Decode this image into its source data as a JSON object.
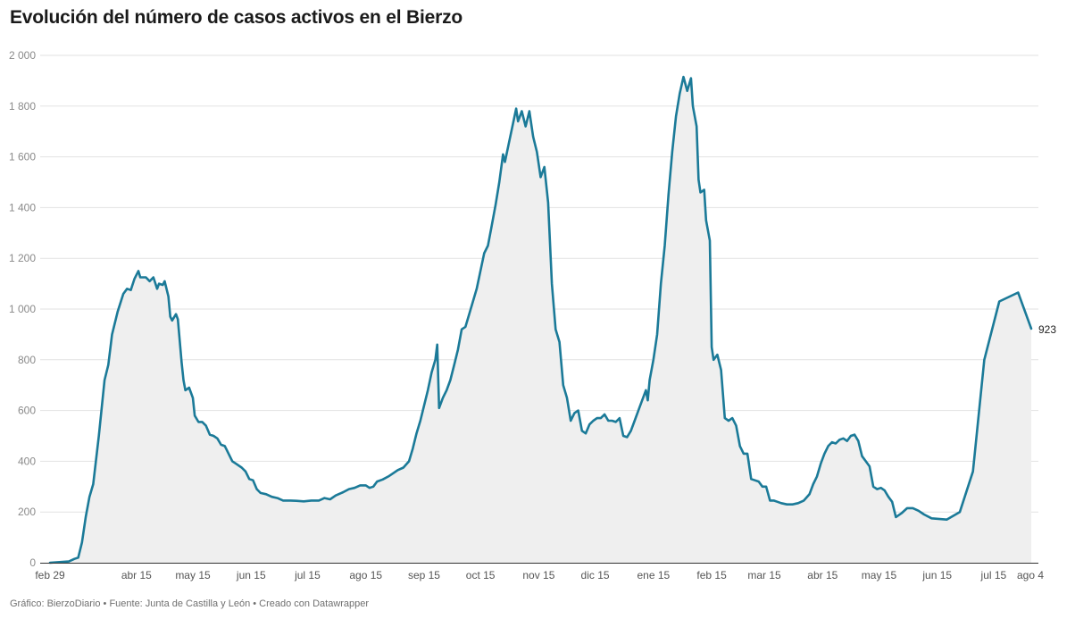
{
  "title": "Evolución del número de casos activos en el Bierzo",
  "footer": "Gráfico: BierzoDiario • Fuente: Junta de Castilla y León • Creado con Datawrapper",
  "colors": {
    "line": "#1b7a98",
    "area": "#efefef",
    "grid": "#e2e2e2",
    "axis": "#333333"
  },
  "chart_data": {
    "type": "area",
    "title": "Evolución del número de casos activos en el Bierzo",
    "xlabel": "",
    "ylabel": "",
    "ylim": [
      0,
      2000
    ],
    "yticks": [
      0,
      200,
      400,
      600,
      800,
      1000,
      1200,
      1400,
      1600,
      1800,
      2000
    ],
    "ytick_labels": [
      "0",
      "200",
      "400",
      "600",
      "800",
      "1 000",
      "1 200",
      "1 400",
      "1 600",
      "1 800",
      "2 000"
    ],
    "xlim": [
      "2020-02-29",
      "2021-08-04"
    ],
    "xticks": [
      {
        "date": "2020-02-29",
        "label": "feb 29"
      },
      {
        "date": "2020-04-15",
        "label": "abr 15"
      },
      {
        "date": "2020-05-15",
        "label": "may 15"
      },
      {
        "date": "2020-06-15",
        "label": "jun 15"
      },
      {
        "date": "2020-07-15",
        "label": "jul 15"
      },
      {
        "date": "2020-08-15",
        "label": "ago 15"
      },
      {
        "date": "2020-09-15",
        "label": "sep 15"
      },
      {
        "date": "2020-10-15",
        "label": "oct 15"
      },
      {
        "date": "2020-11-15",
        "label": "nov 15"
      },
      {
        "date": "2020-12-15",
        "label": "dic 15"
      },
      {
        "date": "2021-01-15",
        "label": "ene 15"
      },
      {
        "date": "2021-02-15",
        "label": "feb 15"
      },
      {
        "date": "2021-03-15",
        "label": "mar 15"
      },
      {
        "date": "2021-04-15",
        "label": "abr 15"
      },
      {
        "date": "2021-05-15",
        "label": "may 15"
      },
      {
        "date": "2021-06-15",
        "label": "jun 15"
      },
      {
        "date": "2021-07-15",
        "label": "jul 15"
      },
      {
        "date": "2021-08-04",
        "label": "ago 4"
      }
    ],
    "grid": true,
    "end_label": "923",
    "series": [
      {
        "points": [
          [
            "2020-02-29",
            0
          ],
          [
            "2020-03-10",
            5
          ],
          [
            "2020-03-13",
            15
          ],
          [
            "2020-03-15",
            20
          ],
          [
            "2020-03-17",
            80
          ],
          [
            "2020-03-19",
            180
          ],
          [
            "2020-03-21",
            260
          ],
          [
            "2020-03-23",
            310
          ],
          [
            "2020-03-26",
            500
          ],
          [
            "2020-03-29",
            720
          ],
          [
            "2020-03-31",
            780
          ],
          [
            "2020-04-02",
            900
          ],
          [
            "2020-04-05",
            990
          ],
          [
            "2020-04-08",
            1060
          ],
          [
            "2020-04-10",
            1080
          ],
          [
            "2020-04-12",
            1075
          ],
          [
            "2020-04-14",
            1120
          ],
          [
            "2020-04-16",
            1150
          ],
          [
            "2020-04-17",
            1125
          ],
          [
            "2020-04-20",
            1125
          ],
          [
            "2020-04-22",
            1110
          ],
          [
            "2020-04-24",
            1125
          ],
          [
            "2020-04-26",
            1080
          ],
          [
            "2020-04-27",
            1100
          ],
          [
            "2020-04-29",
            1095
          ],
          [
            "2020-04-30",
            1110
          ],
          [
            "2020-05-02",
            1050
          ],
          [
            "2020-05-03",
            970
          ],
          [
            "2020-05-04",
            955
          ],
          [
            "2020-05-06",
            980
          ],
          [
            "2020-05-07",
            960
          ],
          [
            "2020-05-09",
            790
          ],
          [
            "2020-05-10",
            720
          ],
          [
            "2020-05-11",
            680
          ],
          [
            "2020-05-13",
            690
          ],
          [
            "2020-05-15",
            650
          ],
          [
            "2020-05-16",
            580
          ],
          [
            "2020-05-18",
            555
          ],
          [
            "2020-05-20",
            555
          ],
          [
            "2020-05-22",
            540
          ],
          [
            "2020-05-24",
            505
          ],
          [
            "2020-05-26",
            500
          ],
          [
            "2020-05-28",
            490
          ],
          [
            "2020-05-30",
            465
          ],
          [
            "2020-06-01",
            460
          ],
          [
            "2020-06-03",
            430
          ],
          [
            "2020-06-05",
            400
          ],
          [
            "2020-06-07",
            390
          ],
          [
            "2020-06-10",
            375
          ],
          [
            "2020-06-12",
            360
          ],
          [
            "2020-06-14",
            330
          ],
          [
            "2020-06-16",
            325
          ],
          [
            "2020-06-18",
            290
          ],
          [
            "2020-06-20",
            275
          ],
          [
            "2020-06-23",
            270
          ],
          [
            "2020-06-26",
            260
          ],
          [
            "2020-06-29",
            255
          ],
          [
            "2020-07-02",
            245
          ],
          [
            "2020-07-06",
            245
          ],
          [
            "2020-07-09",
            244
          ],
          [
            "2020-07-13",
            242
          ],
          [
            "2020-07-17",
            245
          ],
          [
            "2020-07-21",
            245
          ],
          [
            "2020-07-24",
            255
          ],
          [
            "2020-07-27",
            250
          ],
          [
            "2020-07-30",
            265
          ],
          [
            "2020-08-03",
            278
          ],
          [
            "2020-08-06",
            290
          ],
          [
            "2020-08-09",
            295
          ],
          [
            "2020-08-12",
            305
          ],
          [
            "2020-08-15",
            305
          ],
          [
            "2020-08-17",
            295
          ],
          [
            "2020-08-19",
            300
          ],
          [
            "2020-08-21",
            320
          ],
          [
            "2020-08-24",
            328
          ],
          [
            "2020-08-27",
            340
          ],
          [
            "2020-08-30",
            355
          ],
          [
            "2020-09-01",
            365
          ],
          [
            "2020-09-04",
            375
          ],
          [
            "2020-09-07",
            400
          ],
          [
            "2020-09-09",
            450
          ],
          [
            "2020-09-11",
            510
          ],
          [
            "2020-09-13",
            560
          ],
          [
            "2020-09-15",
            620
          ],
          [
            "2020-09-17",
            680
          ],
          [
            "2020-09-19",
            750
          ],
          [
            "2020-09-21",
            800
          ],
          [
            "2020-09-22",
            860
          ],
          [
            "2020-09-23",
            610
          ],
          [
            "2020-09-25",
            650
          ],
          [
            "2020-09-27",
            680
          ],
          [
            "2020-09-29",
            720
          ],
          [
            "2020-10-01",
            780
          ],
          [
            "2020-10-03",
            840
          ],
          [
            "2020-10-05",
            920
          ],
          [
            "2020-10-07",
            930
          ],
          [
            "2020-10-09",
            980
          ],
          [
            "2020-10-11",
            1030
          ],
          [
            "2020-10-13",
            1080
          ],
          [
            "2020-10-15",
            1150
          ],
          [
            "2020-10-17",
            1220
          ],
          [
            "2020-10-19",
            1250
          ],
          [
            "2020-10-21",
            1330
          ],
          [
            "2020-10-23",
            1410
          ],
          [
            "2020-10-25",
            1500
          ],
          [
            "2020-10-27",
            1610
          ],
          [
            "2020-10-28",
            1580
          ],
          [
            "2020-10-30",
            1650
          ],
          [
            "2020-11-01",
            1720
          ],
          [
            "2020-11-03",
            1790
          ],
          [
            "2020-11-04",
            1740
          ],
          [
            "2020-11-06",
            1780
          ],
          [
            "2020-11-08",
            1720
          ],
          [
            "2020-11-10",
            1780
          ],
          [
            "2020-11-12",
            1680
          ],
          [
            "2020-11-14",
            1620
          ],
          [
            "2020-11-16",
            1520
          ],
          [
            "2020-11-18",
            1560
          ],
          [
            "2020-11-20",
            1420
          ],
          [
            "2020-11-22",
            1100
          ],
          [
            "2020-11-24",
            920
          ],
          [
            "2020-11-26",
            870
          ],
          [
            "2020-11-28",
            700
          ],
          [
            "2020-11-30",
            650
          ],
          [
            "2020-12-02",
            560
          ],
          [
            "2020-12-04",
            590
          ],
          [
            "2020-12-06",
            600
          ],
          [
            "2020-12-08",
            520
          ],
          [
            "2020-12-10",
            510
          ],
          [
            "2020-12-12",
            545
          ],
          [
            "2020-12-14",
            560
          ],
          [
            "2020-12-16",
            570
          ],
          [
            "2020-12-18",
            570
          ],
          [
            "2020-12-20",
            585
          ],
          [
            "2020-12-22",
            560
          ],
          [
            "2020-12-24",
            560
          ],
          [
            "2020-12-26",
            555
          ],
          [
            "2020-12-28",
            570
          ],
          [
            "2020-12-30",
            500
          ],
          [
            "2021-01-01",
            495
          ],
          [
            "2021-01-03",
            520
          ],
          [
            "2021-01-05",
            560
          ],
          [
            "2021-01-07",
            600
          ],
          [
            "2021-01-09",
            640
          ],
          [
            "2021-01-11",
            680
          ],
          [
            "2021-01-12",
            640
          ],
          [
            "2021-01-13",
            720
          ],
          [
            "2021-01-15",
            800
          ],
          [
            "2021-01-17",
            900
          ],
          [
            "2021-01-19",
            1100
          ],
          [
            "2021-01-21",
            1250
          ],
          [
            "2021-01-23",
            1450
          ],
          [
            "2021-01-25",
            1620
          ],
          [
            "2021-01-27",
            1760
          ],
          [
            "2021-01-29",
            1850
          ],
          [
            "2021-01-31",
            1915
          ],
          [
            "2021-02-02",
            1860
          ],
          [
            "2021-02-04",
            1910
          ],
          [
            "2021-02-05",
            1800
          ],
          [
            "2021-02-07",
            1720
          ],
          [
            "2021-02-08",
            1510
          ],
          [
            "2021-02-09",
            1460
          ],
          [
            "2021-02-11",
            1470
          ],
          [
            "2021-02-12",
            1350
          ],
          [
            "2021-02-14",
            1270
          ],
          [
            "2021-02-15",
            850
          ],
          [
            "2021-02-16",
            800
          ],
          [
            "2021-02-18",
            820
          ],
          [
            "2021-02-20",
            760
          ],
          [
            "2021-02-22",
            570
          ],
          [
            "2021-02-24",
            560
          ],
          [
            "2021-02-26",
            570
          ],
          [
            "2021-02-28",
            540
          ],
          [
            "2021-03-02",
            460
          ],
          [
            "2021-03-04",
            430
          ],
          [
            "2021-03-06",
            430
          ],
          [
            "2021-03-08",
            330
          ],
          [
            "2021-03-10",
            325
          ],
          [
            "2021-03-12",
            320
          ],
          [
            "2021-03-14",
            300
          ],
          [
            "2021-03-16",
            300
          ],
          [
            "2021-03-18",
            245
          ],
          [
            "2021-03-20",
            245
          ],
          [
            "2021-03-22",
            240
          ],
          [
            "2021-03-24",
            235
          ],
          [
            "2021-03-27",
            230
          ],
          [
            "2021-03-30",
            230
          ],
          [
            "2021-04-02",
            235
          ],
          [
            "2021-04-05",
            245
          ],
          [
            "2021-04-08",
            270
          ],
          [
            "2021-04-10",
            310
          ],
          [
            "2021-04-12",
            340
          ],
          [
            "2021-04-14",
            390
          ],
          [
            "2021-04-16",
            430
          ],
          [
            "2021-04-18",
            460
          ],
          [
            "2021-04-20",
            475
          ],
          [
            "2021-04-22",
            470
          ],
          [
            "2021-04-24",
            485
          ],
          [
            "2021-04-26",
            490
          ],
          [
            "2021-04-28",
            480
          ],
          [
            "2021-04-30",
            500
          ],
          [
            "2021-05-02",
            505
          ],
          [
            "2021-05-04",
            480
          ],
          [
            "2021-05-06",
            420
          ],
          [
            "2021-05-08",
            400
          ],
          [
            "2021-05-10",
            380
          ],
          [
            "2021-05-12",
            300
          ],
          [
            "2021-05-14",
            290
          ],
          [
            "2021-05-16",
            295
          ],
          [
            "2021-05-18",
            285
          ],
          [
            "2021-05-20",
            260
          ],
          [
            "2021-05-22",
            240
          ],
          [
            "2021-05-24",
            180
          ],
          [
            "2021-05-27",
            195
          ],
          [
            "2021-05-30",
            215
          ],
          [
            "2021-06-02",
            215
          ],
          [
            "2021-06-05",
            205
          ],
          [
            "2021-06-08",
            190
          ],
          [
            "2021-06-12",
            175
          ],
          [
            "2021-06-20",
            170
          ],
          [
            "2021-06-27",
            200
          ],
          [
            "2021-07-04",
            360
          ],
          [
            "2021-07-10",
            800
          ],
          [
            "2021-07-18",
            1030
          ],
          [
            "2021-07-28",
            1065
          ],
          [
            "2021-08-04",
            923
          ]
        ]
      }
    ]
  }
}
